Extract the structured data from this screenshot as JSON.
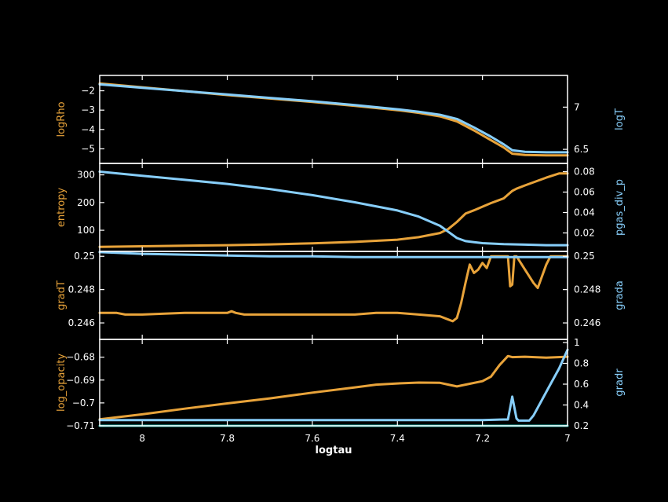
{
  "colors": {
    "left_series": "#E8A33A",
    "right_series": "#87CEFA",
    "axes": "#FFFFFF",
    "background": "#000000",
    "baseline": "#20B2AA"
  },
  "chart_data": [
    {
      "type": "line",
      "xlabel": "logtau",
      "x_reversed": true,
      "xlim": [
        8.1,
        7.0
      ],
      "x_ticks": [
        8,
        7.8,
        7.6,
        7.4,
        7.2,
        7
      ],
      "x_tick_labels": [
        "8",
        "7.8",
        "7.6",
        "7.4",
        "7.2",
        "7"
      ],
      "left_axis": {
        "label": "logRho",
        "ylim": [
          -5.55,
          -1.45
        ],
        "ticks": [
          -2,
          -3,
          -4,
          -5
        ],
        "tick_labels": [
          "−2",
          "−3",
          "−4",
          "−5"
        ]
      },
      "right_axis": {
        "label": "logT",
        "ylim": [
          6.38,
          7.32
        ],
        "ticks": [
          7,
          6.5
        ],
        "tick_labels": [
          "7",
          "6.5"
        ]
      },
      "series": [
        {
          "axis": "left",
          "x": [
            8.1,
            8.0,
            7.9,
            7.8,
            7.7,
            7.6,
            7.5,
            7.4,
            7.35,
            7.3,
            7.26,
            7.22,
            7.18,
            7.15,
            7.13,
            7.1,
            7.05,
            7.0
          ],
          "y": [
            -1.62,
            -1.82,
            -2.02,
            -2.22,
            -2.4,
            -2.58,
            -2.78,
            -3.0,
            -3.14,
            -3.32,
            -3.58,
            -4.05,
            -4.55,
            -4.93,
            -5.25,
            -5.32,
            -5.34,
            -5.34
          ]
        },
        {
          "axis": "right",
          "x": [
            8.1,
            8.0,
            7.9,
            7.8,
            7.7,
            7.6,
            7.5,
            7.4,
            7.35,
            7.3,
            7.26,
            7.22,
            7.18,
            7.15,
            7.13,
            7.1,
            7.05,
            7.0
          ],
          "y": [
            7.27,
            7.23,
            7.19,
            7.15,
            7.11,
            7.07,
            7.025,
            6.975,
            6.945,
            6.91,
            6.86,
            6.76,
            6.65,
            6.56,
            6.49,
            6.47,
            6.465,
            6.465
          ]
        }
      ]
    },
    {
      "type": "line",
      "left_axis": {
        "label": "entropy",
        "ylim": [
          35,
          330
        ],
        "ticks": [
          300,
          200,
          100
        ],
        "tick_labels": [
          "300",
          "200",
          "100"
        ]
      },
      "right_axis": {
        "label": "pgas_div_p",
        "ylim": [
          0.005,
          0.085
        ],
        "ticks": [
          0.08,
          0.06,
          0.04,
          0.02
        ],
        "tick_labels": [
          "0.08",
          "0.06",
          "0.04",
          "0.02"
        ]
      },
      "series": [
        {
          "axis": "left",
          "x": [
            8.1,
            8.0,
            7.9,
            7.8,
            7.7,
            7.6,
            7.5,
            7.4,
            7.35,
            7.3,
            7.28,
            7.26,
            7.24,
            7.22,
            7.2,
            7.18,
            7.15,
            7.13,
            7.12,
            7.1,
            7.05,
            7.02,
            7.0
          ],
          "y": [
            40,
            42,
            44,
            46,
            49,
            53,
            58,
            66,
            75,
            90,
            105,
            130,
            160,
            172,
            185,
            198,
            215,
            242,
            250,
            262,
            290,
            305,
            305
          ]
        },
        {
          "axis": "right",
          "x": [
            8.1,
            8.0,
            7.9,
            7.8,
            7.7,
            7.6,
            7.5,
            7.4,
            7.35,
            7.3,
            7.28,
            7.26,
            7.24,
            7.22,
            7.2,
            7.15,
            7.1,
            7.05,
            7.0
          ],
          "y": [
            0.08,
            0.076,
            0.072,
            0.068,
            0.063,
            0.057,
            0.05,
            0.042,
            0.036,
            0.027,
            0.021,
            0.015,
            0.012,
            0.011,
            0.01,
            0.009,
            0.0085,
            0.008,
            0.008
          ]
        }
      ]
    },
    {
      "type": "line",
      "left_axis": {
        "label": "gradT",
        "ylim": [
          0.2452,
          0.2502
        ],
        "ticks": [
          0.25,
          0.248,
          0.246
        ],
        "tick_labels": [
          "0.25",
          "0.248",
          "0.246"
        ]
      },
      "right_axis": {
        "label": "grada",
        "ylim": [
          0.2452,
          0.2502
        ],
        "ticks": [
          0.25,
          0.248,
          0.246
        ],
        "tick_labels": [
          "0.25",
          "0.248",
          "0.246"
        ]
      },
      "series": [
        {
          "axis": "left",
          "x": [
            8.1,
            8.06,
            8.04,
            8.0,
            7.9,
            7.8,
            7.79,
            7.78,
            7.76,
            7.7,
            7.6,
            7.5,
            7.45,
            7.4,
            7.35,
            7.3,
            7.28,
            7.27,
            7.26,
            7.25,
            7.24,
            7.23,
            7.22,
            7.21,
            7.2,
            7.19,
            7.18,
            7.17,
            7.15,
            7.14,
            7.135,
            7.13,
            7.125,
            7.12,
            7.1,
            7.08,
            7.07,
            7.05,
            7.04,
            7.0
          ],
          "y": [
            0.2466,
            0.2466,
            0.2465,
            0.2465,
            0.2466,
            0.2466,
            0.2467,
            0.2466,
            0.2465,
            0.2465,
            0.2465,
            0.2465,
            0.2466,
            0.2466,
            0.2465,
            0.2464,
            0.2462,
            0.2461,
            0.2463,
            0.2472,
            0.2484,
            0.2495,
            0.249,
            0.2492,
            0.2496,
            0.2493,
            0.25,
            0.25,
            0.25,
            0.25,
            0.2482,
            0.2483,
            0.25,
            0.25,
            0.2492,
            0.2484,
            0.2481,
            0.2495,
            0.25,
            0.25
          ]
        },
        {
          "axis": "right",
          "x": [
            8.1,
            8.0,
            7.9,
            7.8,
            7.7,
            7.6,
            7.5,
            7.4,
            7.3,
            7.2,
            7.1,
            7.0
          ],
          "y": [
            0.25025,
            0.25015,
            0.2501,
            0.25005,
            0.25,
            0.25,
            0.24995,
            0.24995,
            0.24995,
            0.24995,
            0.24995,
            0.24995
          ]
        }
      ]
    },
    {
      "type": "line",
      "left_axis": {
        "label": "log_opacity",
        "ylim": [
          -0.71,
          -0.6736
        ],
        "ticks": [
          -0.68,
          -0.69,
          -0.7,
          -0.71
        ],
        "tick_labels": [
          "−0.68",
          "−0.69",
          "−0.7",
          "−0.71"
        ]
      },
      "right_axis": {
        "label": "gradr",
        "ylim": [
          0.2,
          1.0
        ],
        "ticks": [
          1,
          0.8,
          0.6,
          0.4,
          0.2
        ],
        "tick_labels": [
          "1",
          "0.8",
          "0.6",
          "0.4",
          "0.2"
        ]
      },
      "series": [
        {
          "axis": "left",
          "x": [
            8.1,
            8.0,
            7.9,
            7.8,
            7.7,
            7.6,
            7.5,
            7.45,
            7.4,
            7.35,
            7.3,
            7.28,
            7.26,
            7.24,
            7.2,
            7.18,
            7.16,
            7.14,
            7.13,
            7.1,
            7.05,
            7.0
          ],
          "y": [
            -0.7072,
            -0.705,
            -0.7025,
            -0.7002,
            -0.698,
            -0.6955,
            -0.6932,
            -0.692,
            -0.6915,
            -0.6911,
            -0.6912,
            -0.692,
            -0.6928,
            -0.692,
            -0.6905,
            -0.6885,
            -0.6835,
            -0.6795,
            -0.68,
            -0.6798,
            -0.6802,
            -0.6798
          ]
        },
        {
          "axis": "right",
          "x": [
            8.1,
            8.0,
            7.8,
            7.6,
            7.4,
            7.2,
            7.15,
            7.14,
            7.13,
            7.12,
            7.115,
            7.11,
            7.09,
            7.08,
            7.06,
            7.04,
            7.02,
            7.0
          ],
          "y": [
            0.255,
            0.255,
            0.255,
            0.255,
            0.255,
            0.255,
            0.26,
            0.26,
            0.48,
            0.27,
            0.25,
            0.25,
            0.25,
            0.3,
            0.45,
            0.6,
            0.75,
            0.93
          ]
        },
        {
          "axis": "left",
          "baseline": true,
          "x": [
            8.1,
            7.0
          ],
          "y": [
            -0.71,
            -0.71
          ]
        }
      ]
    }
  ]
}
